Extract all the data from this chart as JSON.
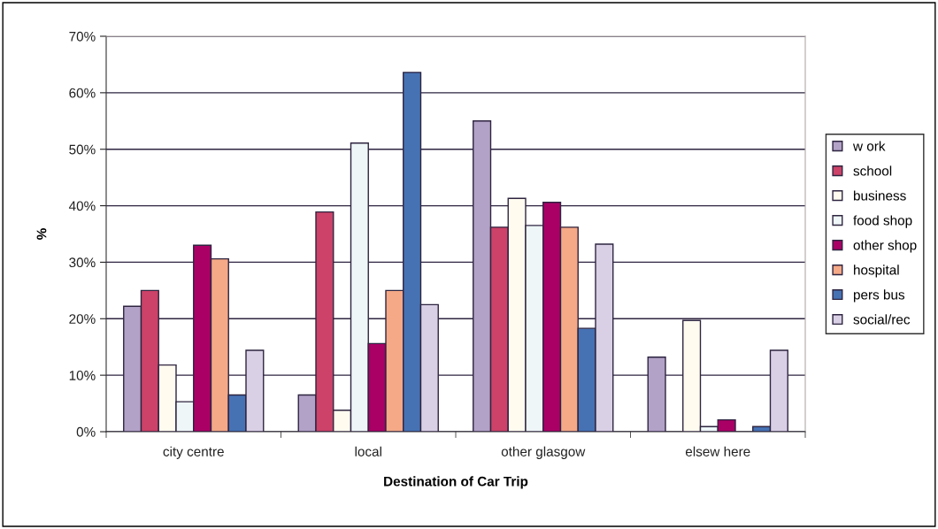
{
  "chart_data": {
    "type": "bar",
    "xlabel": "Destination of Car Trip",
    "ylabel": "%",
    "categories": [
      "city centre",
      "local",
      "other glasgow",
      "elsew here"
    ],
    "series": [
      {
        "name": "w ork",
        "color": "#b3a2c7",
        "values": [
          22.2,
          6.5,
          55.0,
          13.2
        ]
      },
      {
        "name": "school",
        "color": "#cc4268",
        "values": [
          25.0,
          38.9,
          36.2,
          null
        ]
      },
      {
        "name": "business",
        "color": "#fffbef",
        "values": [
          11.8,
          3.8,
          41.3,
          19.7
        ]
      },
      {
        "name": "food shop",
        "color": "#eef6f7",
        "values": [
          5.3,
          51.1,
          36.5,
          0.9
        ]
      },
      {
        "name": "other shop",
        "color": "#aa0066",
        "values": [
          33.0,
          15.6,
          40.6,
          2.1
        ]
      },
      {
        "name": "hospital",
        "color": "#f5a987",
        "values": [
          30.6,
          25.0,
          36.2,
          null
        ]
      },
      {
        "name": "pers bus",
        "color": "#4672b4",
        "values": [
          6.5,
          63.6,
          18.3,
          0.9
        ]
      },
      {
        "name": "social/rec",
        "color": "#d9d0e6",
        "values": [
          14.4,
          22.5,
          33.2,
          14.4
        ]
      }
    ],
    "ylim": [
      0,
      70
    ],
    "yticks": [
      {
        "value": 0,
        "label": "0%"
      },
      {
        "value": 10,
        "label": "10%"
      },
      {
        "value": 20,
        "label": "20%"
      },
      {
        "value": 30,
        "label": "30%"
      },
      {
        "value": 40,
        "label": "40%"
      },
      {
        "value": 50,
        "label": "50%"
      },
      {
        "value": 60,
        "label": "60%"
      },
      {
        "value": 70,
        "label": "70%"
      }
    ],
    "grid": "y",
    "legend": "right"
  }
}
